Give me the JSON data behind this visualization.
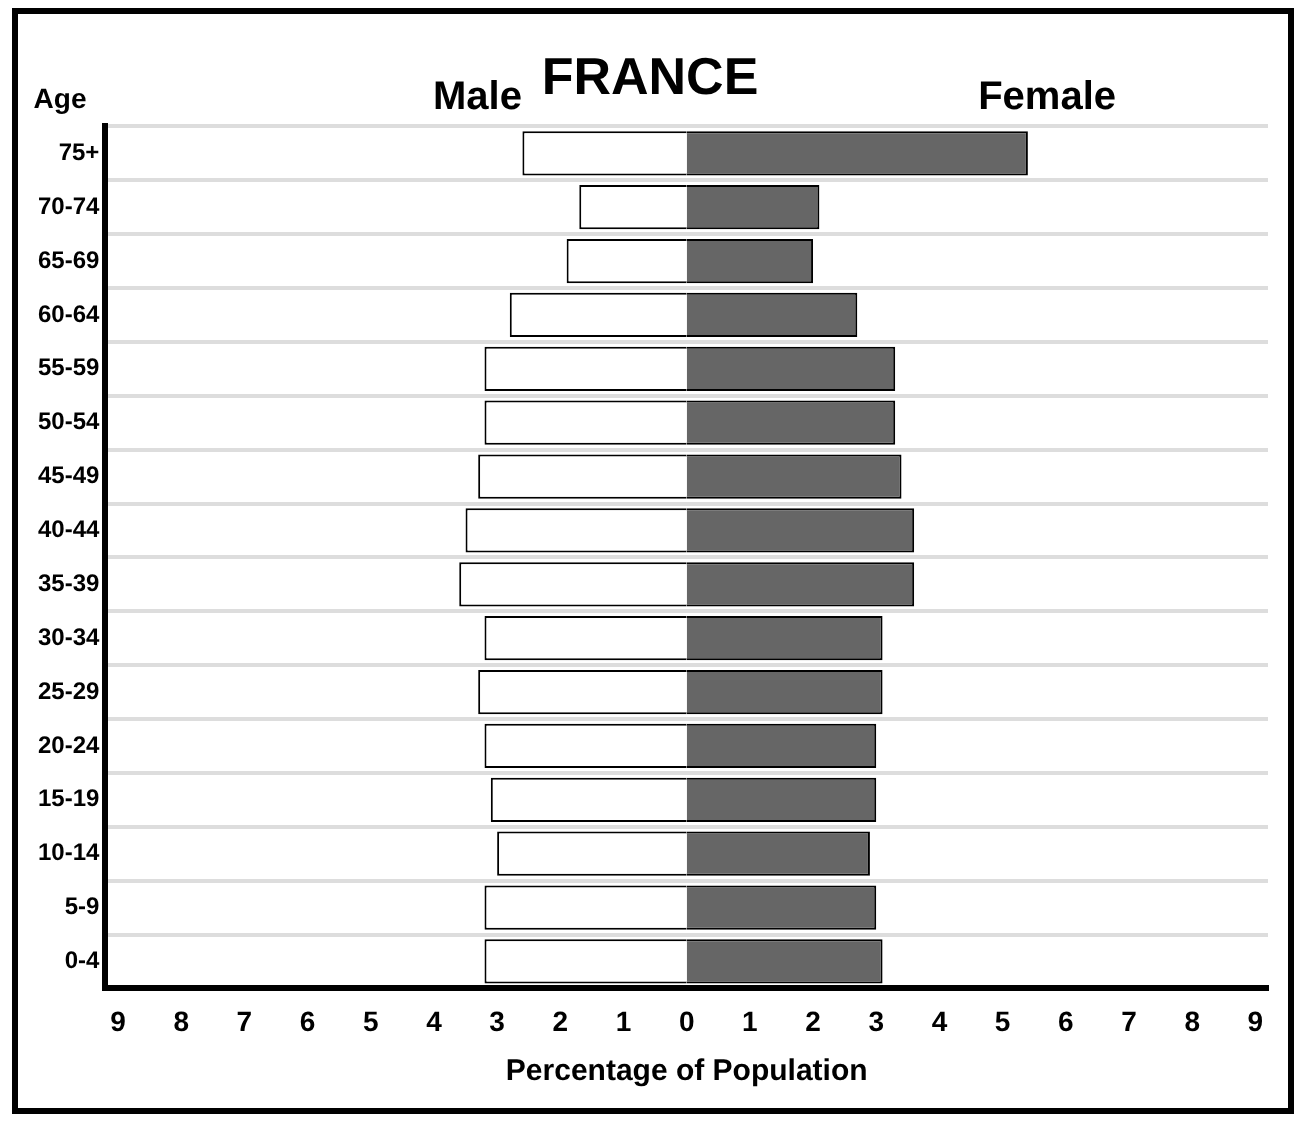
{
  "chart_data": {
    "type": "bar",
    "orientation": "horizontal",
    "stacked": true,
    "title": "FRANCE",
    "xlabel": "Percentage of Population",
    "ylabel": "Age",
    "categories": [
      "75+",
      "70-74",
      "65-69",
      "60-64",
      "55-59",
      "50-54",
      "45-49",
      "40-44",
      "35-39",
      "30-34",
      "25-29",
      "20-24",
      "15-19",
      "10-14",
      "5-9",
      "0-4"
    ],
    "series": [
      {
        "name": "Male",
        "color": "#ffffff",
        "values": [
          -2.6,
          -1.7,
          -1.9,
          -2.8,
          -3.2,
          -3.2,
          -3.3,
          -3.5,
          -3.6,
          -3.2,
          -3.3,
          -3.2,
          -3.1,
          -3.0,
          -3.2,
          -3.2
        ]
      },
      {
        "name": "Female",
        "color": "#666666",
        "values": [
          5.4,
          2.1,
          2.0,
          2.7,
          3.3,
          3.3,
          3.4,
          3.6,
          3.6,
          3.1,
          3.1,
          3.0,
          3.0,
          2.9,
          3.0,
          3.1
        ]
      }
    ],
    "xlim": [
      -9.2,
      9.2
    ],
    "xticks": [
      {
        "value": -9,
        "label": "9"
      },
      {
        "value": -8,
        "label": "8"
      },
      {
        "value": -7,
        "label": "7"
      },
      {
        "value": -6,
        "label": "6"
      },
      {
        "value": -5,
        "label": "5"
      },
      {
        "value": -4,
        "label": "4"
      },
      {
        "value": -3,
        "label": "3"
      },
      {
        "value": -2,
        "label": "2"
      },
      {
        "value": -1,
        "label": "1"
      },
      0,
      1,
      2,
      3,
      4,
      5,
      6,
      7,
      8,
      9
    ],
    "grid": "y",
    "legend": false
  }
}
